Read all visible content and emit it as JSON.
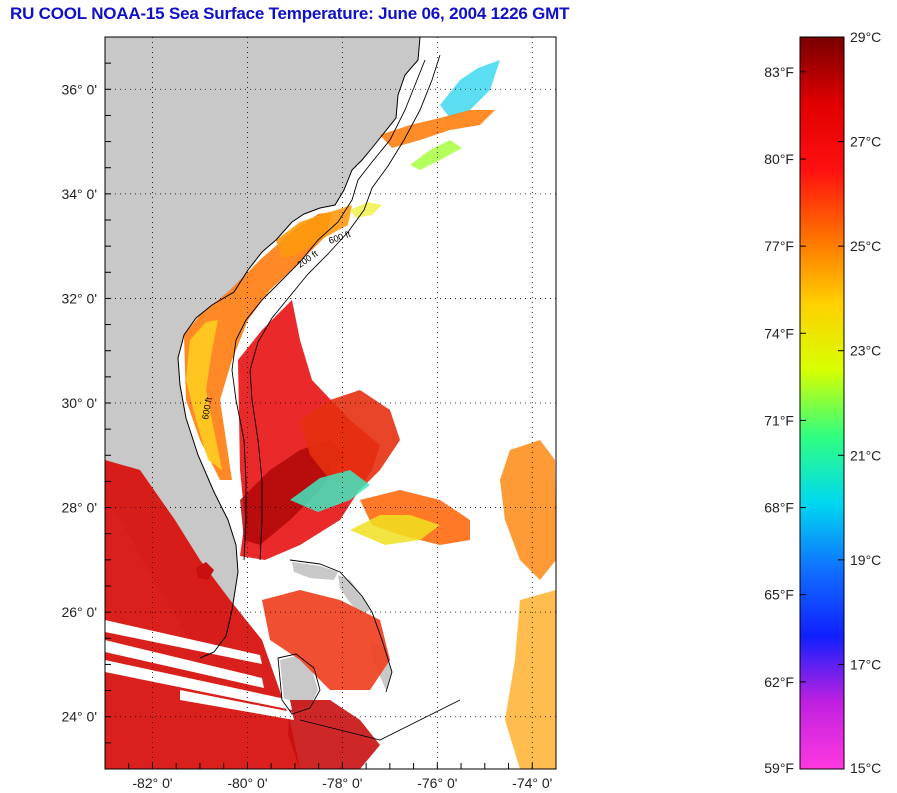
{
  "title": "RU COOL  NOAA-15  Sea Surface Temperature:  June 06, 2004 1226 GMT",
  "map": {
    "lon_range": [
      -83,
      -73.5
    ],
    "lat_range": [
      23.0,
      37.0
    ],
    "lat_ticks": [
      {
        "value": 24,
        "label": "24° 0'"
      },
      {
        "value": 26,
        "label": "26° 0'"
      },
      {
        "value": 28,
        "label": "28° 0'"
      },
      {
        "value": 30,
        "label": "30° 0'"
      },
      {
        "value": 32,
        "label": "32° 0'"
      },
      {
        "value": 34,
        "label": "34° 0'"
      },
      {
        "value": 36,
        "label": "36° 0'"
      }
    ],
    "lon_ticks": [
      {
        "value": -82,
        "label": "-82° 0'"
      },
      {
        "value": -80,
        "label": "-80° 0'"
      },
      {
        "value": -78,
        "label": "-78° 0'"
      },
      {
        "value": -76,
        "label": "-76° 0'"
      },
      {
        "value": -74,
        "label": "-74° 0'"
      }
    ],
    "land_color": "#c8c8c8",
    "isobath_labels": [
      "200 ft",
      "600 ft"
    ]
  },
  "colorbar": {
    "celsius_labels": [
      {
        "value": 29,
        "label": "29°C"
      },
      {
        "value": 27,
        "label": "27°C"
      },
      {
        "value": 25,
        "label": "25°C"
      },
      {
        "value": 23,
        "label": "23°C"
      },
      {
        "value": 21,
        "label": "21°C"
      },
      {
        "value": 19,
        "label": "19°C"
      },
      {
        "value": 17,
        "label": "17°C"
      },
      {
        "value": 15,
        "label": "15°C"
      }
    ],
    "fahrenheit_labels": [
      {
        "value": 83,
        "label": "83°F"
      },
      {
        "value": 80,
        "label": "80°F"
      },
      {
        "value": 77,
        "label": "77°F"
      },
      {
        "value": 74,
        "label": "74°F"
      },
      {
        "value": 71,
        "label": "71°F"
      },
      {
        "value": 68,
        "label": "68°F"
      },
      {
        "value": 65,
        "label": "65°F"
      },
      {
        "value": 62,
        "label": "62°F"
      },
      {
        "value": 59,
        "label": "59°F"
      }
    ],
    "range_c": [
      15,
      29
    ],
    "colors": [
      "#ff38e0",
      "#c020e0",
      "#1020ff",
      "#1070ff",
      "#00d8f0",
      "#30ff80",
      "#d8ff00",
      "#ffd000",
      "#ff7000",
      "#ff1010",
      "#e00000",
      "#780000"
    ]
  }
}
